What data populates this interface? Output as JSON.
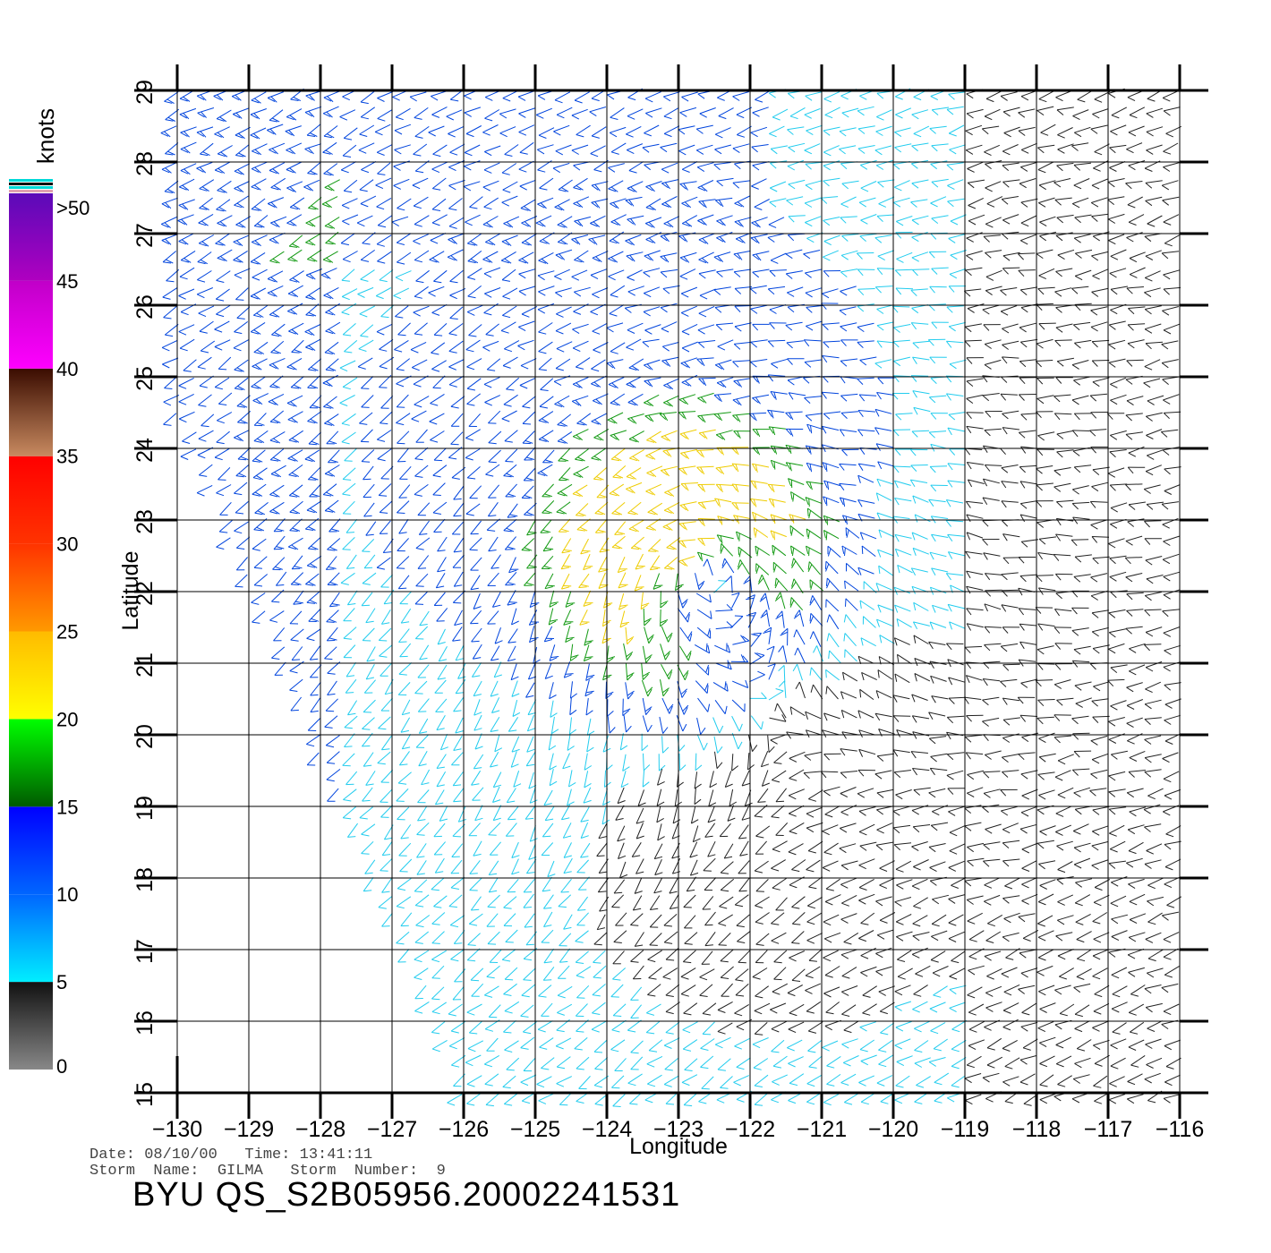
{
  "map": {
    "xlabel": "Longitude",
    "ylabel": "Latitude",
    "lon_ticks": [
      -130,
      -129,
      -128,
      -127,
      -126,
      -125,
      -124,
      -123,
      -122,
      -121,
      -120,
      -119,
      -118,
      -117,
      -116
    ],
    "lat_ticks": [
      15,
      16,
      17,
      18,
      19,
      20,
      21,
      22,
      23,
      24,
      25,
      26,
      27,
      28,
      29
    ],
    "lon_range": [
      -130,
      -116
    ],
    "lat_range": [
      15,
      29
    ],
    "grid": true
  },
  "colorbar": {
    "unit_label": "knots",
    "tick_labels": [
      "0",
      "5",
      "10",
      "15",
      "20",
      "25",
      "30",
      "35",
      "40",
      "45",
      ">50"
    ],
    "bands": [
      {
        "from": 0,
        "to": 5,
        "colors": [
          "#888888",
          "#111111"
        ]
      },
      {
        "from": 5,
        "to": 10,
        "colors": [
          "#00eeff",
          "#0066ff"
        ]
      },
      {
        "from": 10,
        "to": 15,
        "colors": [
          "#0066ff",
          "#0000ff"
        ]
      },
      {
        "from": 15,
        "to": 20,
        "colors": [
          "#005a00",
          "#00ff00"
        ]
      },
      {
        "from": 20,
        "to": 25,
        "colors": [
          "#ffff00",
          "#ffbb00"
        ]
      },
      {
        "from": 25,
        "to": 30,
        "colors": [
          "#ff9900",
          "#ff3300"
        ]
      },
      {
        "from": 30,
        "to": 35,
        "colors": [
          "#ff3300",
          "#ff0000"
        ]
      },
      {
        "from": 35,
        "to": 40,
        "colors": [
          "#c88a60",
          "#3a0c00"
        ]
      },
      {
        "from": 40,
        "to": 45,
        "colors": [
          "#ff00ff",
          "#c000c8"
        ]
      },
      {
        "from": 45,
        "to": 50,
        "colors": [
          "#b000c0",
          "#5a0ab8"
        ]
      }
    ]
  },
  "wind_palette": {
    "calm": "#222222",
    "light": "#22ccee",
    "moderate": "#0044dd",
    "fresh": "#119911",
    "strong": "#eecc00",
    "gale": "#dd2200"
  },
  "footer": {
    "date_line": "Date: 08/10/00   Time: 13:41:11",
    "storm_line": "Storm  Name:  GILMA   Storm  Number:  9",
    "product_id": "BYU  QS_S2B05956.20002241531"
  }
}
